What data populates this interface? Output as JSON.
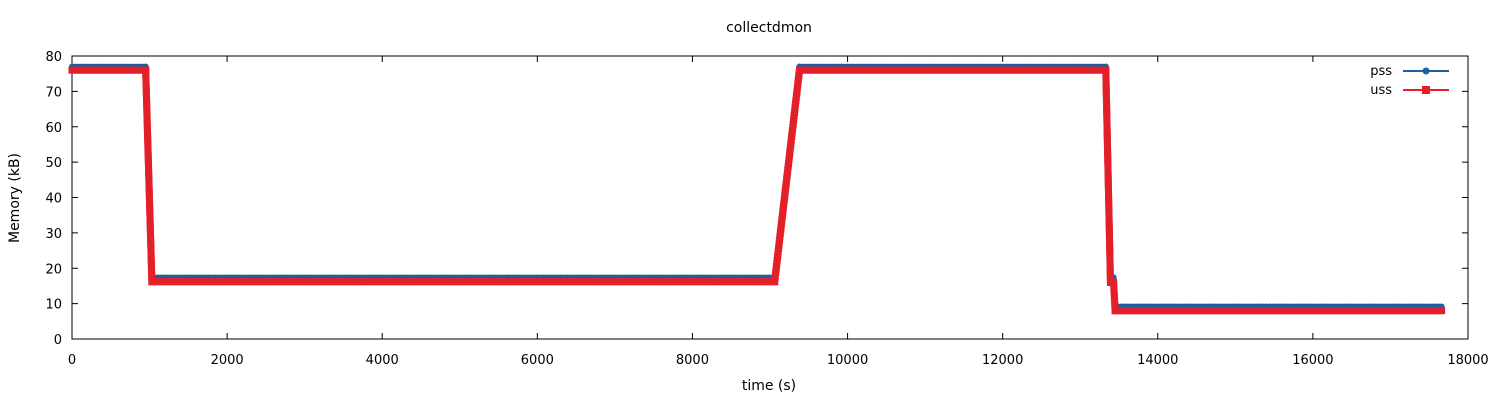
{
  "chart_data": {
    "type": "line",
    "title": "collectdmon",
    "xlabel": "time (s)",
    "ylabel": "Memory (kB)",
    "xlim": [
      0,
      18000
    ],
    "ylim": [
      0,
      80
    ],
    "x_ticks": [
      0,
      2000,
      4000,
      6000,
      8000,
      10000,
      12000,
      14000,
      16000,
      18000
    ],
    "y_ticks": [
      0,
      10,
      20,
      30,
      40,
      50,
      60,
      70,
      80
    ],
    "grid": false,
    "legend_position": "top-right",
    "series": [
      {
        "name": "pss",
        "color": "#1f5fa0",
        "marker": "circle",
        "points": [
          [
            0,
            77
          ],
          [
            950,
            77
          ],
          [
            1030,
            17.4
          ],
          [
            9060,
            17.4
          ],
          [
            9380,
            77
          ],
          [
            13330,
            77
          ],
          [
            13390,
            17.4
          ],
          [
            13430,
            17.4
          ],
          [
            13450,
            9.2
          ],
          [
            17660,
            9.2
          ]
        ]
      },
      {
        "name": "uss",
        "color": "#e3202a",
        "marker": "square",
        "points": [
          [
            0,
            76
          ],
          [
            950,
            76
          ],
          [
            1030,
            16.2
          ],
          [
            9060,
            16.2
          ],
          [
            9380,
            76
          ],
          [
            13330,
            76
          ],
          [
            13390,
            16
          ],
          [
            13430,
            16
          ],
          [
            13450,
            8
          ],
          [
            17660,
            8
          ]
        ]
      }
    ]
  }
}
